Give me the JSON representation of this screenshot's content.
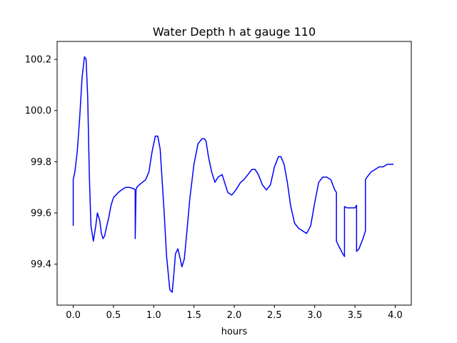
{
  "chart_data": {
    "type": "line",
    "title": "Water Depth h at gauge 110",
    "xlabel": "hours",
    "ylabel": "",
    "xlim": [
      -0.2,
      4.2
    ],
    "ylim": [
      99.24,
      100.27
    ],
    "xticks": [
      0.0,
      0.5,
      1.0,
      1.5,
      2.0,
      2.5,
      3.0,
      3.5,
      4.0
    ],
    "xtick_labels": [
      "0.0",
      "0.5",
      "1.0",
      "1.5",
      "2.0",
      "2.5",
      "3.0",
      "3.5",
      "4.0"
    ],
    "yticks": [
      99.4,
      99.6,
      99.8,
      100.0,
      100.2
    ],
    "ytick_labels": [
      "99.4",
      "99.6",
      "99.8",
      "100.0",
      "100.2"
    ],
    "grid": false,
    "series": [
      {
        "color": "#0000ff",
        "x": [
          0.0,
          0.0,
          0.02,
          0.05,
          0.08,
          0.11,
          0.14,
          0.16,
          0.18,
          0.2,
          0.22,
          0.25,
          0.28,
          0.3,
          0.33,
          0.35,
          0.37,
          0.39,
          0.41,
          0.44,
          0.47,
          0.5,
          0.53,
          0.56,
          0.6,
          0.65,
          0.7,
          0.75,
          0.77,
          0.77,
          0.78,
          0.79,
          0.79,
          0.82,
          0.86,
          0.9,
          0.94,
          0.98,
          1.02,
          1.05,
          1.08,
          1.1,
          1.13,
          1.16,
          1.2,
          1.23,
          1.25,
          1.27,
          1.3,
          1.33,
          1.35,
          1.38,
          1.41,
          1.45,
          1.5,
          1.55,
          1.6,
          1.63,
          1.65,
          1.68,
          1.72,
          1.76,
          1.8,
          1.85,
          1.88,
          1.92,
          1.97,
          2.02,
          2.08,
          2.12,
          2.17,
          2.22,
          2.26,
          2.3,
          2.35,
          2.4,
          2.45,
          2.5,
          2.55,
          2.58,
          2.62,
          2.66,
          2.7,
          2.75,
          2.8,
          2.85,
          2.9,
          2.95,
          3.0,
          3.05,
          3.1,
          3.15,
          3.2,
          3.25,
          3.27,
          3.27,
          3.3,
          3.35,
          3.37,
          3.37,
          3.4,
          3.45,
          3.5,
          3.52,
          3.52,
          3.55,
          3.6,
          3.63,
          3.63,
          3.65,
          3.7,
          3.75,
          3.8,
          3.85,
          3.9,
          3.95,
          3.98
        ],
        "y": [
          99.55,
          99.73,
          99.76,
          99.84,
          99.97,
          100.13,
          100.21,
          100.2,
          100.05,
          99.75,
          99.55,
          99.49,
          99.55,
          99.6,
          99.57,
          99.52,
          99.5,
          99.51,
          99.54,
          99.58,
          99.63,
          99.66,
          99.67,
          99.68,
          99.69,
          99.7,
          99.7,
          99.695,
          99.69,
          99.5,
          99.69,
          99.7,
          99.7,
          99.71,
          99.72,
          99.73,
          99.76,
          99.84,
          99.9,
          99.9,
          99.85,
          99.75,
          99.6,
          99.43,
          99.3,
          99.29,
          99.36,
          99.44,
          99.46,
          99.42,
          99.39,
          99.42,
          99.52,
          99.66,
          99.79,
          99.87,
          99.89,
          99.89,
          99.88,
          99.82,
          99.76,
          99.72,
          99.74,
          99.75,
          99.72,
          99.68,
          99.67,
          99.69,
          99.72,
          99.73,
          99.75,
          99.77,
          99.77,
          99.75,
          99.71,
          99.69,
          99.71,
          99.78,
          99.82,
          99.82,
          99.79,
          99.72,
          99.63,
          99.56,
          99.54,
          99.53,
          99.52,
          99.55,
          99.64,
          99.72,
          99.74,
          99.74,
          99.73,
          99.69,
          99.68,
          99.49,
          99.47,
          99.44,
          99.43,
          99.625,
          99.62,
          99.62,
          99.62,
          99.63,
          99.45,
          99.46,
          99.5,
          99.53,
          99.73,
          99.74,
          99.76,
          99.77,
          99.78,
          99.78,
          99.79,
          99.79,
          99.79
        ]
      }
    ]
  }
}
